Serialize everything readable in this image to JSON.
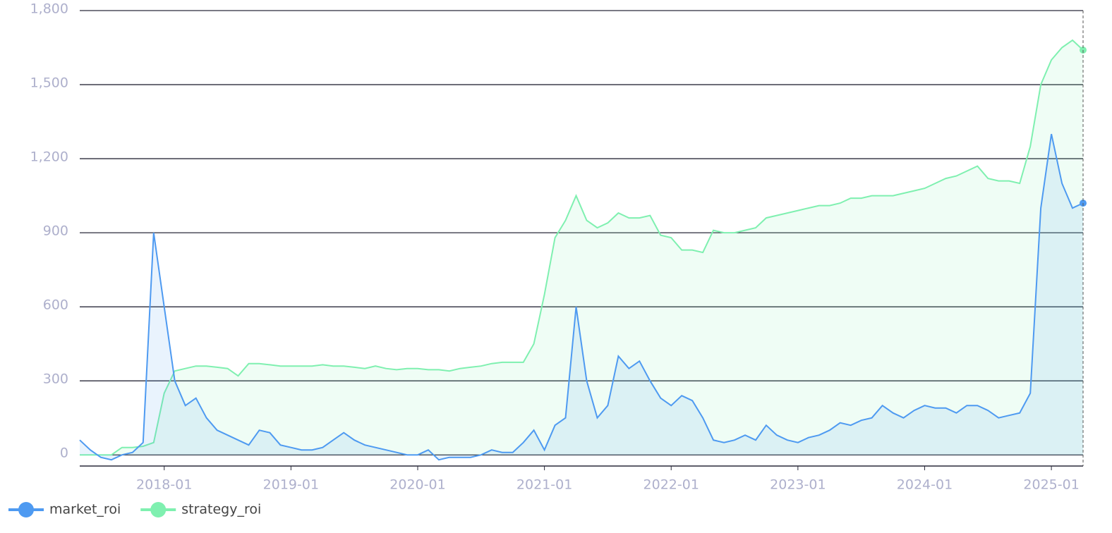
{
  "chart_data": {
    "type": "line",
    "x": [
      "2017-05",
      "2017-06",
      "2017-07",
      "2017-08",
      "2017-09",
      "2017-10",
      "2017-11",
      "2017-12",
      "2018-01",
      "2018-02",
      "2018-03",
      "2018-04",
      "2018-05",
      "2018-06",
      "2018-07",
      "2018-08",
      "2018-09",
      "2018-10",
      "2018-11",
      "2018-12",
      "2019-01",
      "2019-02",
      "2019-03",
      "2019-04",
      "2019-05",
      "2019-06",
      "2019-07",
      "2019-08",
      "2019-09",
      "2019-10",
      "2019-11",
      "2019-12",
      "2020-01",
      "2020-02",
      "2020-03",
      "2020-04",
      "2020-05",
      "2020-06",
      "2020-07",
      "2020-08",
      "2020-09",
      "2020-10",
      "2020-11",
      "2020-12",
      "2021-01",
      "2021-02",
      "2021-03",
      "2021-04",
      "2021-05",
      "2021-06",
      "2021-07",
      "2021-08",
      "2021-09",
      "2021-10",
      "2021-11",
      "2021-12",
      "2022-01",
      "2022-02",
      "2022-03",
      "2022-04",
      "2022-05",
      "2022-06",
      "2022-07",
      "2022-08",
      "2022-09",
      "2022-10",
      "2022-11",
      "2022-12",
      "2023-01",
      "2023-02",
      "2023-03",
      "2023-04",
      "2023-05",
      "2023-06",
      "2023-07",
      "2023-08",
      "2023-09",
      "2023-10",
      "2023-11",
      "2023-12",
      "2024-01",
      "2024-02",
      "2024-03",
      "2024-04",
      "2024-05",
      "2024-06",
      "2024-07",
      "2024-08",
      "2024-09",
      "2024-10",
      "2024-11",
      "2024-12",
      "2025-01",
      "2025-02",
      "2025-03",
      "2025-04"
    ],
    "series": [
      {
        "name": "market_roi",
        "color": "#4e9af1",
        "values": [
          60,
          20,
          -10,
          -20,
          0,
          10,
          50,
          900,
          600,
          300,
          200,
          230,
          150,
          100,
          80,
          60,
          40,
          100,
          90,
          40,
          30,
          20,
          20,
          30,
          60,
          90,
          60,
          40,
          30,
          20,
          10,
          0,
          0,
          20,
          -20,
          -10,
          -10,
          -10,
          0,
          20,
          10,
          10,
          50,
          100,
          20,
          120,
          150,
          600,
          300,
          150,
          200,
          400,
          350,
          380,
          300,
          230,
          200,
          240,
          220,
          150,
          60,
          50,
          60,
          80,
          60,
          120,
          80,
          60,
          50,
          70,
          80,
          100,
          130,
          120,
          140,
          150,
          200,
          170,
          150,
          180,
          200,
          190,
          190,
          170,
          200,
          200,
          180,
          150,
          160,
          170,
          250,
          1000,
          1300,
          1100,
          1000,
          1020
        ]
      },
      {
        "name": "strategy_roi",
        "color": "#7ff0b0",
        "values": [
          0,
          0,
          0,
          0,
          30,
          30,
          35,
          50,
          250,
          340,
          350,
          360,
          360,
          355,
          350,
          320,
          370,
          370,
          365,
          360,
          360,
          360,
          360,
          365,
          360,
          360,
          355,
          350,
          360,
          350,
          345,
          350,
          350,
          345,
          345,
          340,
          350,
          355,
          360,
          370,
          375,
          375,
          375,
          450,
          650,
          880,
          950,
          1050,
          950,
          920,
          940,
          980,
          960,
          960,
          970,
          890,
          880,
          830,
          830,
          820,
          910,
          900,
          900,
          910,
          920,
          960,
          970,
          980,
          990,
          1000,
          1010,
          1010,
          1020,
          1040,
          1040,
          1050,
          1050,
          1050,
          1060,
          1070,
          1080,
          1100,
          1120,
          1130,
          1150,
          1170,
          1120,
          1110,
          1110,
          1100,
          1250,
          1500,
          1600,
          1650,
          1680,
          1640
        ]
      }
    ],
    "xlim": [
      "2017-05",
      "2025-04"
    ],
    "xticks": [
      "2018-01",
      "2019-01",
      "2020-01",
      "2021-01",
      "2022-01",
      "2023-01",
      "2024-01",
      "2025-01"
    ],
    "ylim": [
      -45,
      1800
    ],
    "yticks": [
      0,
      300,
      600,
      900,
      {
        "value": 1200,
        "label": "1,200"
      },
      {
        "value": 1500,
        "label": "1,500"
      },
      {
        "value": 1800,
        "label": "1,800"
      }
    ],
    "grid": true,
    "legend": "lower left"
  }
}
